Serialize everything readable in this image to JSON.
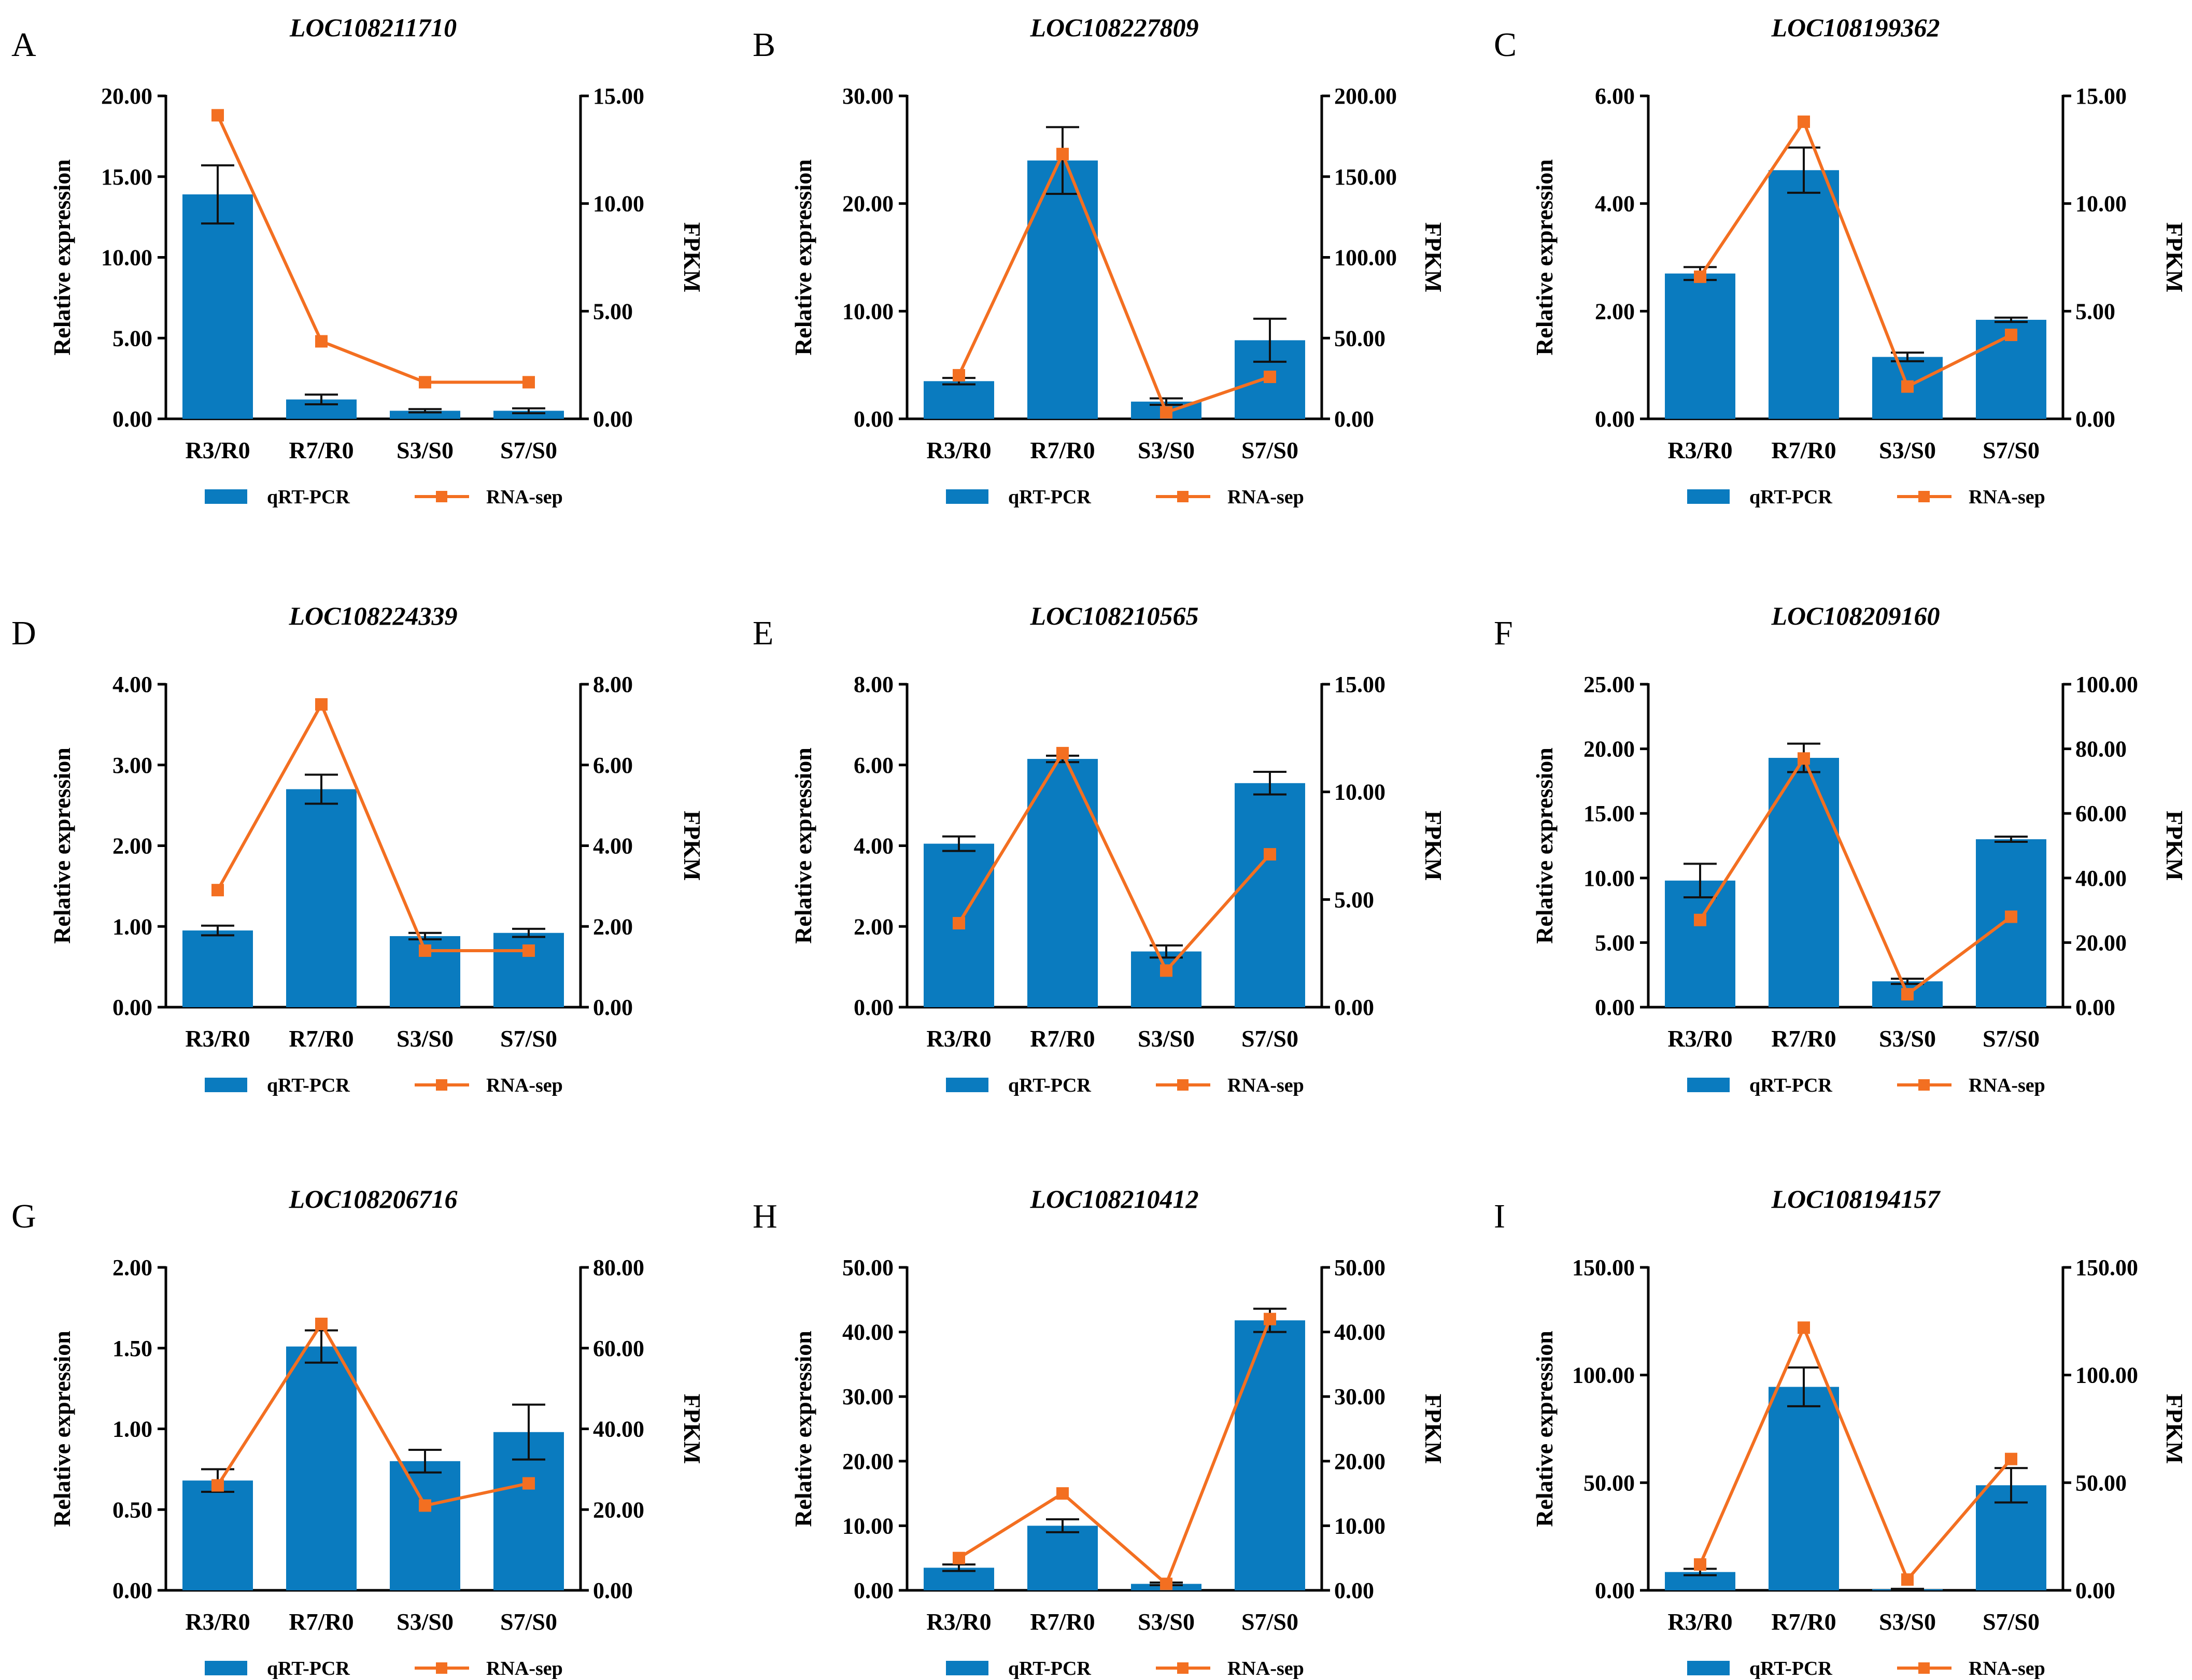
{
  "colors": {
    "bar": "#0a7bbf",
    "line": "#f36f21",
    "axis": "#000000"
  },
  "legend": {
    "bar_label": "qRT-PCR",
    "line_label": "RNA-sep"
  },
  "axis_titles": {
    "left": "Relative expression",
    "right": "FPKM"
  },
  "chart_data": [
    {
      "type": "bar",
      "panel": "A",
      "title": "LOC108211710",
      "categories": [
        "R3/R0",
        "R7/R0",
        "S3/S0",
        "S7/S0"
      ],
      "left_axis": {
        "label": "Relative expression",
        "ylim": [
          0,
          20
        ],
        "ticks": [
          "0.00",
          "5.00",
          "10.00",
          "15.00",
          "20.00"
        ]
      },
      "right_axis": {
        "label": "FPKM",
        "ylim": [
          0,
          15
        ],
        "ticks": [
          "0.00",
          "5.00",
          "10.00",
          "15.00"
        ]
      },
      "series": [
        {
          "name": "qRT-PCR",
          "type": "bar",
          "axis": "left",
          "values": [
            13.9,
            1.2,
            0.5,
            0.5
          ],
          "errors": [
            1.8,
            0.3,
            0.1,
            0.15
          ]
        },
        {
          "name": "RNA-sep",
          "type": "line",
          "axis": "right",
          "values": [
            14.1,
            3.6,
            1.7,
            1.7
          ]
        }
      ]
    },
    {
      "type": "bar",
      "panel": "B",
      "title": "LOC108227809",
      "categories": [
        "R3/R0",
        "R7/R0",
        "S3/S0",
        "S7/S0"
      ],
      "left_axis": {
        "label": "Relative expression",
        "ylim": [
          0,
          30
        ],
        "ticks": [
          "0.00",
          "10.00",
          "20.00",
          "30.00"
        ]
      },
      "right_axis": {
        "label": "FPKM",
        "ylim": [
          0,
          200
        ],
        "ticks": [
          "0.00",
          "50.00",
          "100.00",
          "150.00",
          "200.00"
        ]
      },
      "series": [
        {
          "name": "qRT-PCR",
          "type": "bar",
          "axis": "left",
          "values": [
            3.5,
            24.0,
            1.6,
            7.3
          ],
          "errors": [
            0.3,
            3.1,
            0.3,
            2.0
          ]
        },
        {
          "name": "RNA-sep",
          "type": "line",
          "axis": "right",
          "values": [
            27,
            164,
            4,
            26
          ]
        }
      ]
    },
    {
      "type": "bar",
      "panel": "C",
      "title": "LOC108199362",
      "categories": [
        "R3/R0",
        "R7/R0",
        "S3/S0",
        "S7/S0"
      ],
      "left_axis": {
        "label": "Relative expression",
        "ylim": [
          0,
          6
        ],
        "ticks": [
          "0.00",
          "2.00",
          "4.00",
          "6.00"
        ]
      },
      "right_axis": {
        "label": "FPKM",
        "ylim": [
          0,
          15
        ],
        "ticks": [
          "0.00",
          "5.00",
          "10.00",
          "15.00"
        ]
      },
      "series": [
        {
          "name": "qRT-PCR",
          "type": "bar",
          "axis": "left",
          "values": [
            2.7,
            4.62,
            1.15,
            1.84
          ],
          "errors": [
            0.12,
            0.42,
            0.08,
            0.04
          ]
        },
        {
          "name": "RNA-sep",
          "type": "line",
          "axis": "right",
          "values": [
            6.6,
            13.8,
            1.5,
            3.9
          ]
        }
      ]
    },
    {
      "type": "bar",
      "panel": "D",
      "title": "LOC108224339",
      "categories": [
        "R3/R0",
        "R7/R0",
        "S3/S0",
        "S7/S0"
      ],
      "left_axis": {
        "label": "Relative expression",
        "ylim": [
          0,
          4
        ],
        "ticks": [
          "0.00",
          "1.00",
          "2.00",
          "3.00",
          "4.00"
        ]
      },
      "right_axis": {
        "label": "FPKM",
        "ylim": [
          0,
          8
        ],
        "ticks": [
          "0.00",
          "2.00",
          "4.00",
          "6.00",
          "8.00"
        ]
      },
      "series": [
        {
          "name": "qRT-PCR",
          "type": "bar",
          "axis": "left",
          "values": [
            0.95,
            2.7,
            0.88,
            0.92
          ],
          "errors": [
            0.06,
            0.18,
            0.04,
            0.05
          ]
        },
        {
          "name": "RNA-sep",
          "type": "line",
          "axis": "right",
          "values": [
            2.9,
            7.5,
            1.4,
            1.4
          ]
        }
      ]
    },
    {
      "type": "bar",
      "panel": "E",
      "title": "LOC108210565",
      "categories": [
        "R3/R0",
        "R7/R0",
        "S3/S0",
        "S7/S0"
      ],
      "left_axis": {
        "label": "Relative expression",
        "ylim": [
          0,
          8
        ],
        "ticks": [
          "0.00",
          "2.00",
          "4.00",
          "6.00",
          "8.00"
        ]
      },
      "right_axis": {
        "label": "FPKM",
        "ylim": [
          0,
          15
        ],
        "ticks": [
          "0.00",
          "5.00",
          "10.00",
          "15.00"
        ]
      },
      "series": [
        {
          "name": "qRT-PCR",
          "type": "bar",
          "axis": "left",
          "values": [
            4.05,
            6.15,
            1.38,
            5.55
          ],
          "errors": [
            0.18,
            0.08,
            0.15,
            0.28
          ]
        },
        {
          "name": "RNA-sep",
          "type": "line",
          "axis": "right",
          "values": [
            3.9,
            11.8,
            1.7,
            7.1
          ]
        }
      ]
    },
    {
      "type": "bar",
      "panel": "F",
      "title": "LOC108209160",
      "categories": [
        "R3/R0",
        "R7/R0",
        "S3/S0",
        "S7/S0"
      ],
      "left_axis": {
        "label": "Relative expression",
        "ylim": [
          0,
          25
        ],
        "ticks": [
          "0.00",
          "5.00",
          "10.00",
          "15.00",
          "20.00",
          "25.00"
        ]
      },
      "right_axis": {
        "label": "FPKM",
        "ylim": [
          0,
          100
        ],
        "ticks": [
          "0.00",
          "20.00",
          "40.00",
          "60.00",
          "80.00",
          "100.00"
        ]
      },
      "series": [
        {
          "name": "qRT-PCR",
          "type": "bar",
          "axis": "left",
          "values": [
            9.8,
            19.3,
            2.0,
            13.0
          ],
          "errors": [
            1.3,
            1.1,
            0.2,
            0.2
          ]
        },
        {
          "name": "RNA-sep",
          "type": "line",
          "axis": "right",
          "values": [
            27,
            77,
            4,
            28
          ]
        }
      ]
    },
    {
      "type": "bar",
      "panel": "G",
      "title": "LOC108206716",
      "categories": [
        "R3/R0",
        "R7/R0",
        "S3/S0",
        "S7/S0"
      ],
      "left_axis": {
        "label": "Relative expression",
        "ylim": [
          0,
          2
        ],
        "ticks": [
          "0.00",
          "0.50",
          "1.00",
          "1.50",
          "2.00"
        ]
      },
      "right_axis": {
        "label": "FPKM",
        "ylim": [
          0,
          80
        ],
        "ticks": [
          "0.00",
          "20.00",
          "40.00",
          "60.00",
          "80.00"
        ]
      },
      "series": [
        {
          "name": "qRT-PCR",
          "type": "bar",
          "axis": "left",
          "values": [
            0.68,
            1.51,
            0.8,
            0.98
          ],
          "errors": [
            0.07,
            0.1,
            0.07,
            0.17
          ]
        },
        {
          "name": "RNA-sep",
          "type": "line",
          "axis": "right",
          "values": [
            26,
            66,
            21,
            26.5
          ]
        }
      ]
    },
    {
      "type": "bar",
      "panel": "H",
      "title": "LOC108210412",
      "categories": [
        "R3/R0",
        "R7/R0",
        "S3/S0",
        "S7/S0"
      ],
      "left_axis": {
        "label": "Relative expression",
        "ylim": [
          0,
          50
        ],
        "ticks": [
          "0.00",
          "10.00",
          "20.00",
          "30.00",
          "40.00",
          "50.00"
        ]
      },
      "right_axis": {
        "label": "FPKM",
        "ylim": [
          0,
          50
        ],
        "ticks": [
          "0.00",
          "10.00",
          "20.00",
          "30.00",
          "40.00",
          "50.00"
        ]
      },
      "series": [
        {
          "name": "qRT-PCR",
          "type": "bar",
          "axis": "left",
          "values": [
            3.5,
            10.0,
            1.0,
            41.8
          ],
          "errors": [
            0.5,
            1.0,
            0.2,
            1.8
          ]
        },
        {
          "name": "RNA-sep",
          "type": "line",
          "axis": "right",
          "values": [
            5,
            15,
            1,
            42
          ]
        }
      ]
    },
    {
      "type": "bar",
      "panel": "I",
      "title": "LOC108194157",
      "categories": [
        "R3/R0",
        "R7/R0",
        "S3/S0",
        "S7/S0"
      ],
      "left_axis": {
        "label": "Relative expression",
        "ylim": [
          0,
          150
        ],
        "ticks": [
          "0.00",
          "50.00",
          "100.00",
          "150.00"
        ]
      },
      "right_axis": {
        "label": "FPKM",
        "ylim": [
          0,
          150
        ],
        "ticks": [
          "0.00",
          "50.00",
          "100.00",
          "150.00"
        ]
      },
      "series": [
        {
          "name": "qRT-PCR",
          "type": "bar",
          "axis": "left",
          "values": [
            8.5,
            94.5,
            0.5,
            48.8
          ],
          "errors": [
            1.5,
            9.0,
            0.2,
            8.0
          ]
        },
        {
          "name": "RNA-sep",
          "type": "line",
          "axis": "right",
          "values": [
            12,
            122,
            5,
            61
          ]
        }
      ]
    }
  ]
}
